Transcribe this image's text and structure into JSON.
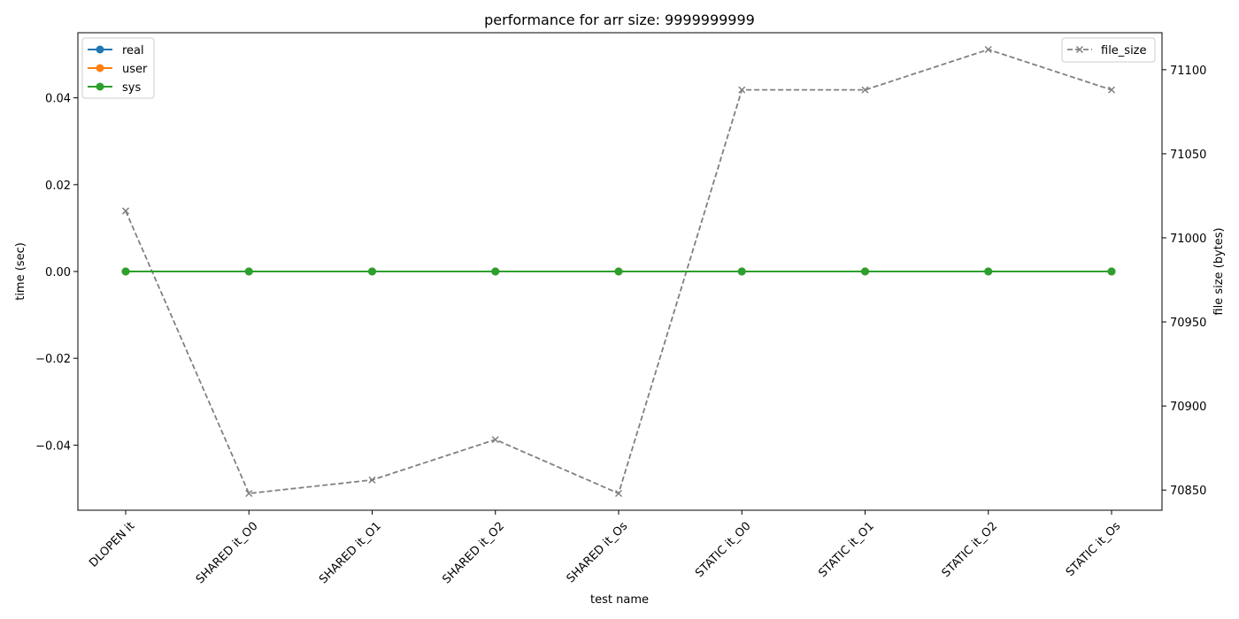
{
  "chart_data": {
    "type": "line",
    "title": "performance for arr size: 9999999999",
    "xlabel": "test name",
    "ylabel": "time (sec)",
    "y2label": "file size (bytes)",
    "categories": [
      "DLOPEN it",
      "SHARED it_O0",
      "SHARED it_O1",
      "SHARED it_O2",
      "SHARED it_Os",
      "STATIC it_O0",
      "STATIC it_O1",
      "STATIC it_O2",
      "STATIC it_Os"
    ],
    "ylim": [
      -0.055,
      0.055
    ],
    "yticks": [
      -0.04,
      -0.02,
      0.0,
      0.02,
      0.04
    ],
    "ytick_labels": [
      "−0.04",
      "−0.02",
      "0.00",
      "0.02",
      "0.04"
    ],
    "y2lim": [
      70838,
      71122
    ],
    "y2ticks": [
      70850,
      70900,
      70950,
      71000,
      71050,
      71100
    ],
    "y2tick_labels": [
      "70850",
      "70900",
      "70950",
      "71000",
      "71050",
      "71100"
    ],
    "series": [
      {
        "name": "real",
        "axis": "left",
        "color": "#1f77b4",
        "values": [
          0,
          0,
          0,
          0,
          0,
          0,
          0,
          0,
          0
        ]
      },
      {
        "name": "user",
        "axis": "left",
        "color": "#ff7f0e",
        "values": [
          0,
          0,
          0,
          0,
          0,
          0,
          0,
          0,
          0
        ]
      },
      {
        "name": "sys",
        "axis": "left",
        "color": "#2ca02c",
        "values": [
          0,
          0,
          0,
          0,
          0,
          0,
          0,
          0,
          0
        ]
      }
    ],
    "series_right": [
      {
        "name": "file_size",
        "axis": "right",
        "color": "#808080",
        "style": "dashed",
        "marker": "x",
        "values": [
          71016,
          70848,
          70856,
          70880,
          70848,
          71088,
          71088,
          71112,
          71088
        ]
      }
    ],
    "legend_left_position": "top-left",
    "legend_right_position": "top-right",
    "grid": false
  }
}
